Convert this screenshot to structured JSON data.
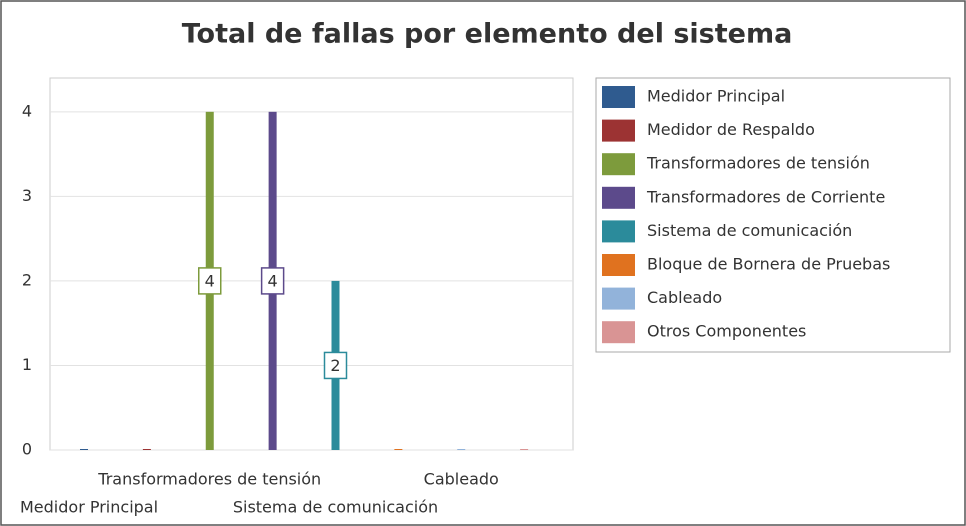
{
  "chart_data": {
    "type": "bar",
    "title": "Total de fallas por elemento del sistema",
    "categories": [
      "Medidor Principal",
      null,
      "Transformadores de tensión",
      null,
      "Sistema de comunicación",
      null,
      "Cableado",
      null
    ],
    "series": [
      {
        "name": "Medidor Principal",
        "color": "#2f5b8f",
        "values": [
          0,
          null,
          null,
          null,
          null,
          null,
          null,
          null
        ]
      },
      {
        "name": "Medidor de Respaldo",
        "color": "#9c3333",
        "values": [
          null,
          0,
          null,
          null,
          null,
          null,
          null,
          null
        ]
      },
      {
        "name": "Transformadores de tensión",
        "color": "#7d9b3c",
        "values": [
          null,
          null,
          4,
          null,
          null,
          null,
          null,
          null
        ]
      },
      {
        "name": "Transformadores de Corriente",
        "color": "#5c4a8b",
        "values": [
          null,
          null,
          null,
          4,
          null,
          null,
          null,
          null
        ]
      },
      {
        "name": "Sistema de comunicación",
        "color": "#2b8b9b",
        "values": [
          null,
          null,
          null,
          null,
          2,
          null,
          null,
          null
        ]
      },
      {
        "name": "Bloque de Bornera de Pruebas",
        "color": "#e0721f",
        "values": [
          null,
          null,
          null,
          null,
          null,
          0,
          null,
          null
        ]
      },
      {
        "name": "Cableado",
        "color": "#92b3da",
        "values": [
          null,
          null,
          null,
          null,
          null,
          null,
          0,
          null
        ]
      },
      {
        "name": "Otros Componentes",
        "color": "#d99494",
        "values": [
          null,
          null,
          null,
          null,
          null,
          null,
          null,
          0
        ]
      }
    ],
    "ylim": [
      0,
      4.4
    ],
    "yticks": [
      0,
      1,
      2,
      3,
      4
    ],
    "grid": true,
    "legend": "right"
  }
}
